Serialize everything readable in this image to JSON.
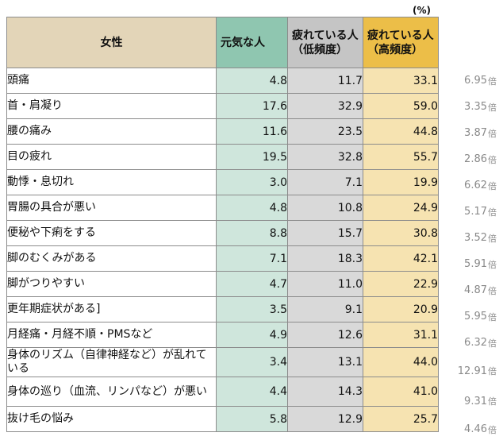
{
  "unit_label": "(%)",
  "headers": {
    "label": "女性",
    "genki": "元気な人",
    "low": "疲れている人（低頻度）",
    "high": "疲れている人（高頻度）"
  },
  "ratio_suffix": "倍",
  "rows": [
    {
      "label": "頭痛",
      "genki": "4.8",
      "low": "11.7",
      "high": "33.1",
      "ratio": "6.95"
    },
    {
      "label": "首・肩凝り",
      "genki": "17.6",
      "low": "32.9",
      "high": "59.0",
      "ratio": "3.35"
    },
    {
      "label": "腰の痛み",
      "genki": "11.6",
      "low": "23.5",
      "high": "44.8",
      "ratio": "3.87"
    },
    {
      "label": "目の疲れ",
      "genki": "19.5",
      "low": "32.8",
      "high": "55.7",
      "ratio": "2.86"
    },
    {
      "label": "動悸・息切れ",
      "genki": "3.0",
      "low": "7.1",
      "high": "19.9",
      "ratio": "6.62"
    },
    {
      "label": "胃腸の具合が悪い",
      "genki": "4.8",
      "low": "10.8",
      "high": "24.9",
      "ratio": "5.17"
    },
    {
      "label": "便秘や下痢をする",
      "genki": "8.8",
      "low": "15.7",
      "high": "30.8",
      "ratio": "3.52"
    },
    {
      "label": "脚のむくみがある",
      "genki": "7.1",
      "low": "18.3",
      "high": "42.1",
      "ratio": "5.91"
    },
    {
      "label": "脚がつりやすい",
      "genki": "4.7",
      "low": "11.0",
      "high": "22.9",
      "ratio": "4.87"
    },
    {
      "label": "更年期症状がある]",
      "genki": "3.5",
      "low": "9.1",
      "high": "20.9",
      "ratio": "5.95"
    },
    {
      "label": "月経痛・月経不順・PMSなど",
      "genki": "4.9",
      "low": "12.6",
      "high": "31.1",
      "ratio": "6.32"
    },
    {
      "label": "身体のリズム（自律神経など）が乱れている",
      "genki": "3.4",
      "low": "13.1",
      "high": "44.0",
      "ratio": "12.91"
    },
    {
      "label": "身体の巡り（血流、リンパなど）が悪い",
      "genki": "4.4",
      "low": "14.3",
      "high": "41.0",
      "ratio": "9.31"
    },
    {
      "label": "抜け毛の悩み",
      "genki": "5.8",
      "low": "12.9",
      "high": "25.7",
      "ratio": "4.46"
    }
  ]
}
